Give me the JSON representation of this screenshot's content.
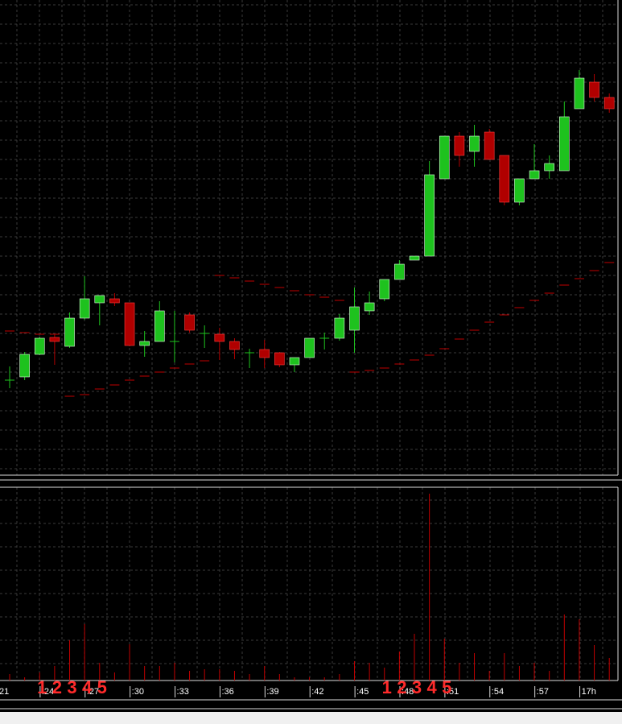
{
  "chart_data": {
    "type": "candlestick",
    "categories": [
      ":21",
      null,
      null,
      ":24",
      null,
      null,
      ":27",
      null,
      null,
      ":30",
      null,
      null,
      ":33",
      null,
      null,
      ":36",
      null,
      null,
      ":39",
      null,
      null,
      ":42",
      null,
      null,
      ":45",
      null,
      null,
      ":48",
      null,
      null,
      ":51",
      null,
      null,
      ":54",
      null,
      null,
      ":57",
      null,
      null,
      "17h",
      null
    ],
    "open": [
      128,
      132,
      160,
      181,
      170,
      205,
      224,
      229,
      224,
      171,
      176,
      176,
      209,
      186,
      185,
      176,
      162,
      166,
      162,
      147,
      156,
      180,
      180,
      190,
      214,
      229,
      253,
      277,
      282,
      378,
      431,
      412,
      436,
      407,
      349,
      378,
      388,
      388,
      465,
      498,
      479
    ],
    "high": [
      145,
      163,
      182,
      185,
      212,
      257,
      233,
      236,
      224,
      189,
      226,
      214,
      212,
      196,
      193,
      180,
      167,
      178,
      163,
      156,
      180,
      187,
      210,
      243,
      238,
      253,
      277,
      282,
      400,
      431,
      436,
      445,
      440,
      407,
      378,
      421,
      407,
      474,
      513,
      508,
      484
    ],
    "low": [
      118,
      128,
      159,
      147,
      168,
      203,
      196,
      220,
      170,
      157,
      176,
      150,
      187,
      168,
      153,
      154,
      143,
      143,
      144,
      138,
      156,
      166,
      177,
      162,
      209,
      226,
      253,
      277,
      282,
      378,
      393,
      393,
      402,
      345,
      345,
      378,
      378,
      388,
      465,
      474,
      460
    ],
    "close": [
      128,
      160,
      180,
      176,
      205,
      229,
      233,
      224,
      171,
      176,
      214,
      176,
      190,
      186,
      176,
      166,
      162,
      156,
      147,
      156,
      180,
      180,
      205,
      219,
      224,
      253,
      272,
      282,
      383,
      431,
      407,
      431,
      402,
      349,
      378,
      388,
      397,
      455,
      503,
      479,
      465
    ],
    "volume": [
      8,
      4,
      10,
      18,
      50,
      70,
      22,
      10,
      45,
      18,
      18,
      22,
      12,
      14,
      14,
      12,
      8,
      18,
      8,
      4,
      4,
      4,
      8,
      24,
      22,
      16,
      36,
      58,
      232,
      52,
      22,
      34,
      12,
      34,
      18,
      22,
      12,
      82,
      76,
      44,
      28
    ],
    "overlay": {
      "color": "#c00000",
      "values": [
        189,
        187,
        185,
        185,
        108,
        110,
        117,
        122,
        128,
        133,
        138,
        143,
        148,
        152,
        258,
        255,
        251,
        247,
        243,
        239,
        234,
        231,
        227,
        138,
        140,
        143,
        148,
        153,
        159,
        167,
        179,
        190,
        200,
        209,
        218,
        227,
        236,
        246,
        254,
        264,
        274
      ]
    },
    "up_color": "#1ec21e",
    "down_color": "#b00000",
    "volume_color": "#c00000",
    "ylim": [
      10,
      600
    ],
    "volume_ylim": [
      0,
      240
    ],
    "annotations": [
      [
        "1",
        "2",
        "3",
        "4",
        "5"
      ],
      [
        "1",
        "2",
        "3",
        "4",
        "5"
      ]
    ],
    "annotation_color": "#ff2a2a"
  }
}
